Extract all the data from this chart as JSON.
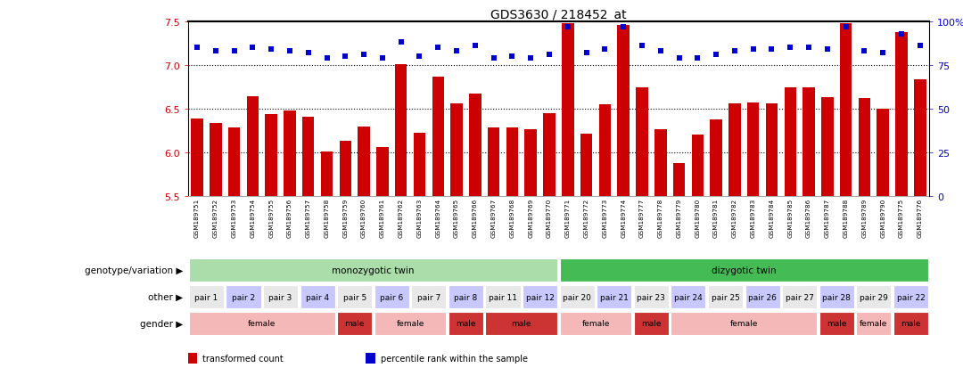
{
  "title": "GDS3630 / 218452_at",
  "samples": [
    "GSM189751",
    "GSM189752",
    "GSM189753",
    "GSM189754",
    "GSM189755",
    "GSM189756",
    "GSM189757",
    "GSM189758",
    "GSM189759",
    "GSM189760",
    "GSM189761",
    "GSM189762",
    "GSM189763",
    "GSM189764",
    "GSM189765",
    "GSM189766",
    "GSM189767",
    "GSM189768",
    "GSM189769",
    "GSM189770",
    "GSM189771",
    "GSM189772",
    "GSM189773",
    "GSM189774",
    "GSM189777",
    "GSM189778",
    "GSM189779",
    "GSM189780",
    "GSM189781",
    "GSM189782",
    "GSM189783",
    "GSM189784",
    "GSM189785",
    "GSM189786",
    "GSM189787",
    "GSM189788",
    "GSM189789",
    "GSM189790",
    "GSM189775",
    "GSM189776"
  ],
  "bar_values": [
    6.39,
    6.34,
    6.29,
    6.64,
    6.44,
    6.48,
    6.41,
    6.01,
    6.13,
    6.3,
    6.06,
    7.01,
    6.22,
    6.87,
    6.56,
    6.67,
    6.29,
    6.29,
    6.27,
    6.45,
    7.48,
    6.21,
    6.55,
    7.46,
    6.74,
    6.27,
    5.88,
    6.2,
    6.38,
    6.56,
    6.57,
    6.56,
    6.74,
    6.74,
    6.63,
    7.48,
    6.62,
    6.5,
    7.38,
    6.84
  ],
  "percentile_values": [
    85,
    83,
    83,
    85,
    84,
    83,
    82,
    79,
    80,
    81,
    79,
    88,
    80,
    85,
    83,
    86,
    79,
    80,
    79,
    81,
    97,
    82,
    84,
    97,
    86,
    83,
    79,
    79,
    81,
    83,
    84,
    84,
    85,
    85,
    84,
    97,
    83,
    82,
    93,
    86
  ],
  "ylim_left": [
    5.5,
    7.5
  ],
  "ylim_right": [
    0,
    100
  ],
  "yticks_left": [
    5.5,
    6.0,
    6.5,
    7.0,
    7.5
  ],
  "yticks_right": [
    0,
    25,
    50,
    75,
    100
  ],
  "bar_color": "#cc0000",
  "marker_color": "#0000cc",
  "gridlines": [
    6.0,
    6.5,
    7.0
  ],
  "genotype_groups": [
    {
      "text": "monozygotic twin",
      "start": 0,
      "end": 19,
      "color": "#aaddaa"
    },
    {
      "text": "dizygotic twin",
      "start": 20,
      "end": 39,
      "color": "#44bb55"
    }
  ],
  "pair_groups": [
    {
      "text": "pair 1",
      "start": 0,
      "end": 1,
      "color": "#e8e8e8"
    },
    {
      "text": "pair 2",
      "start": 2,
      "end": 3,
      "color": "#c8c8ff"
    },
    {
      "text": "pair 3",
      "start": 4,
      "end": 5,
      "color": "#e8e8e8"
    },
    {
      "text": "pair 4",
      "start": 6,
      "end": 7,
      "color": "#c8c8ff"
    },
    {
      "text": "pair 5",
      "start": 8,
      "end": 9,
      "color": "#e8e8e8"
    },
    {
      "text": "pair 6",
      "start": 10,
      "end": 11,
      "color": "#c8c8ff"
    },
    {
      "text": "pair 7",
      "start": 12,
      "end": 13,
      "color": "#e8e8e8"
    },
    {
      "text": "pair 8",
      "start": 14,
      "end": 15,
      "color": "#c8c8ff"
    },
    {
      "text": "pair 11",
      "start": 16,
      "end": 17,
      "color": "#e8e8e8"
    },
    {
      "text": "pair 12",
      "start": 18,
      "end": 19,
      "color": "#c8c8ff"
    },
    {
      "text": "pair 20",
      "start": 20,
      "end": 21,
      "color": "#e8e8e8"
    },
    {
      "text": "pair 21",
      "start": 22,
      "end": 23,
      "color": "#c8c8ff"
    },
    {
      "text": "pair 23",
      "start": 24,
      "end": 25,
      "color": "#e8e8e8"
    },
    {
      "text": "pair 24",
      "start": 26,
      "end": 27,
      "color": "#c8c8ff"
    },
    {
      "text": "pair 25",
      "start": 28,
      "end": 29,
      "color": "#e8e8e8"
    },
    {
      "text": "pair 26",
      "start": 30,
      "end": 31,
      "color": "#c8c8ff"
    },
    {
      "text": "pair 27",
      "start": 32,
      "end": 33,
      "color": "#e8e8e8"
    },
    {
      "text": "pair 28",
      "start": 34,
      "end": 35,
      "color": "#c8c8ff"
    },
    {
      "text": "pair 29",
      "start": 36,
      "end": 37,
      "color": "#e8e8e8"
    },
    {
      "text": "pair 22",
      "start": 38,
      "end": 39,
      "color": "#c8c8ff"
    }
  ],
  "gender_groups": [
    {
      "text": "female",
      "start": 0,
      "end": 7,
      "color": "#f4b8b8"
    },
    {
      "text": "male",
      "start": 8,
      "end": 9,
      "color": "#cc3333"
    },
    {
      "text": "female",
      "start": 10,
      "end": 13,
      "color": "#f4b8b8"
    },
    {
      "text": "male",
      "start": 14,
      "end": 15,
      "color": "#cc3333"
    },
    {
      "text": "male",
      "start": 16,
      "end": 19,
      "color": "#cc3333"
    },
    {
      "text": "female",
      "start": 20,
      "end": 23,
      "color": "#f4b8b8"
    },
    {
      "text": "male",
      "start": 24,
      "end": 25,
      "color": "#cc3333"
    },
    {
      "text": "female",
      "start": 26,
      "end": 33,
      "color": "#f4b8b8"
    },
    {
      "text": "male",
      "start": 34,
      "end": 35,
      "color": "#cc3333"
    },
    {
      "text": "female",
      "start": 36,
      "end": 37,
      "color": "#f4b8b8"
    },
    {
      "text": "male",
      "start": 38,
      "end": 39,
      "color": "#cc3333"
    }
  ],
  "row_labels": [
    "genotype/variation",
    "other",
    "gender"
  ],
  "legend_items": [
    {
      "color": "#cc0000",
      "label": "transformed count"
    },
    {
      "color": "#0000cc",
      "label": "percentile rank within the sample"
    }
  ]
}
